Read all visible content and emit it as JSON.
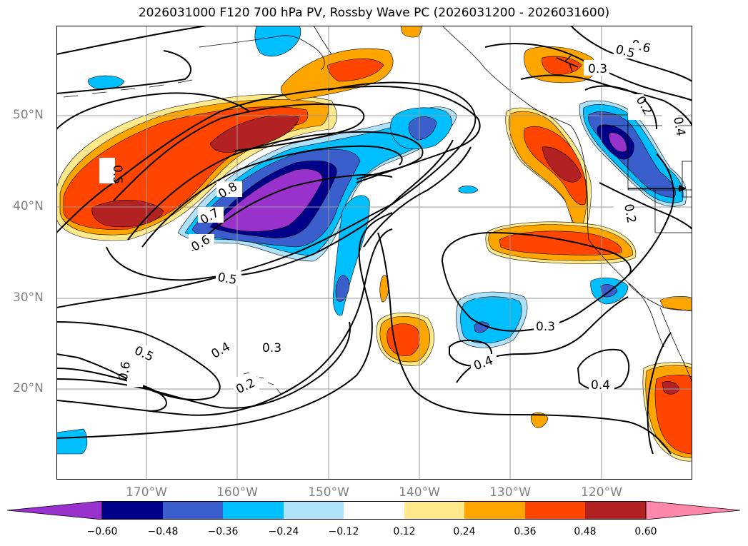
{
  "title": "2026031000 F120 700 hPa PV, Rossby Wave PC (2026031200 - 2026031600)",
  "map": {
    "lat_labels": [
      "50°N",
      "40°N",
      "30°N",
      "20°N"
    ],
    "lon_labels": [
      "170°W",
      "160°W",
      "150°W",
      "140°W",
      "130°W",
      "120°W"
    ],
    "contour_labels": [
      "0.6",
      "0.5",
      "0.3",
      "0.5",
      "0.8",
      "0.7",
      "0.6",
      "0.5",
      "0.5",
      "0.6",
      "0.4",
      "0.3",
      "0.2",
      "0.3",
      "0.4",
      "0.4",
      "0.2",
      "0.4",
      "0.2"
    ],
    "contour_color": "#000000",
    "grid": true
  },
  "colorbar": {
    "ticks": [
      "−0.60",
      "−0.48",
      "−0.36",
      "−0.24",
      "−0.12",
      "0.12",
      "0.24",
      "0.36",
      "0.48",
      "0.60"
    ],
    "colors": [
      "#9932cc",
      "#00008b",
      "#3a5fcd",
      "#00bfff",
      "#aee2fa",
      "#ffffff",
      "#ffe98a",
      "#ffa500",
      "#ff4500",
      "#b22222",
      "#ff88aa"
    ]
  },
  "shading_colors": {
    "neg1": "#aee2fa",
    "neg2": "#00bfff",
    "neg3": "#3a5fcd",
    "neg4": "#00008b",
    "neg5": "#9932cc",
    "pos1": "#ffe98a",
    "pos2": "#ffa500",
    "pos3": "#ff4500",
    "pos4": "#b22222",
    "pos5": "#ff88aa"
  }
}
